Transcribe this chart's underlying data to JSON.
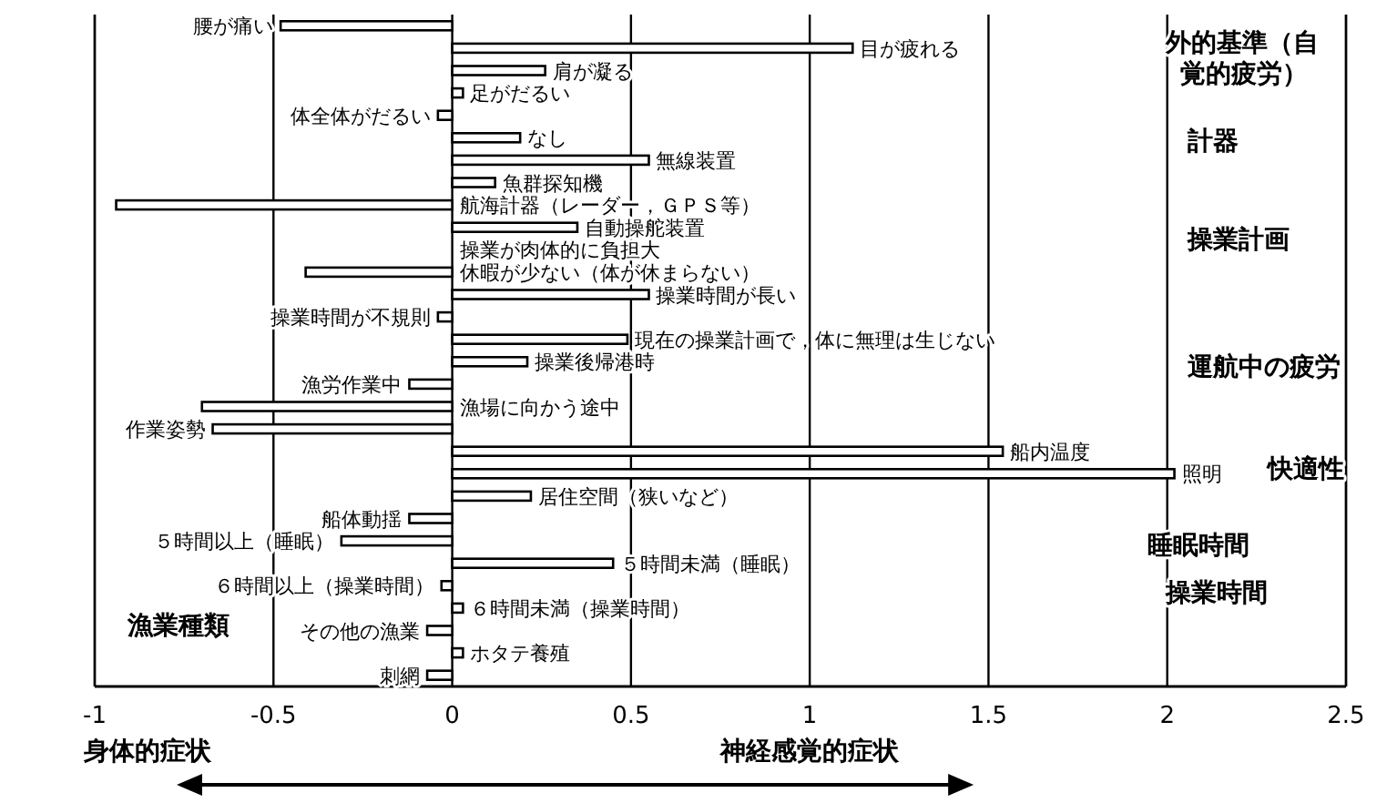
{
  "chart_data": {
    "type": "bar",
    "orientation": "horizontal",
    "categories": [
      "腰が痛い",
      "目が疲れる",
      "肩が凝る",
      "足がだるい",
      "体全体がだるい",
      "なし",
      "無線装置",
      "魚群探知機",
      "航海計器（レーダー，ＧＰＳ等）",
      "自動操舵装置",
      "操業が肉体的に負担大",
      "休暇が少ない（体が休まらない）",
      "操業時間が長い",
      "操業時間が不規則",
      "現在の操業計画で，体に無理は生じない",
      "操業後帰港時",
      "漁労作業中",
      "漁場に向かう途中",
      "作業姿勢",
      "船内温度",
      "照明",
      "居住空間（狭いなど）",
      "船体動揺",
      "５時間以上（睡眠）",
      "５時間未満（睡眠）",
      "６時間以上（操業時間）",
      "６時間未満（操業時間）",
      "その他の漁業",
      "ホタテ養殖",
      "刺網"
    ],
    "values": [
      -0.48,
      1.12,
      0.26,
      0.03,
      -0.04,
      0.19,
      0.55,
      0.12,
      -0.94,
      0.35,
      null,
      -0.41,
      0.55,
      -0.04,
      0.49,
      0.21,
      -0.12,
      -0.7,
      -0.67,
      1.54,
      2.02,
      0.22,
      -0.12,
      -0.31,
      0.45,
      -0.03,
      0.03,
      -0.07,
      0.03,
      -0.07
    ],
    "color": "#ffffff",
    "xlim": [
      -1,
      2.5
    ],
    "xticks": [
      -1,
      -0.5,
      0,
      0.5,
      1,
      1.5,
      2,
      2.5
    ],
    "grid": "x",
    "xlabel": "神経感覚的症状",
    "annotations": [
      "外的基準（自覚的疲労）",
      "計器",
      "操業計画",
      "運航中の疲労",
      "快適性",
      "睡眠時間",
      "操業時間",
      "漁業種類",
      "身体的症状"
    ]
  }
}
